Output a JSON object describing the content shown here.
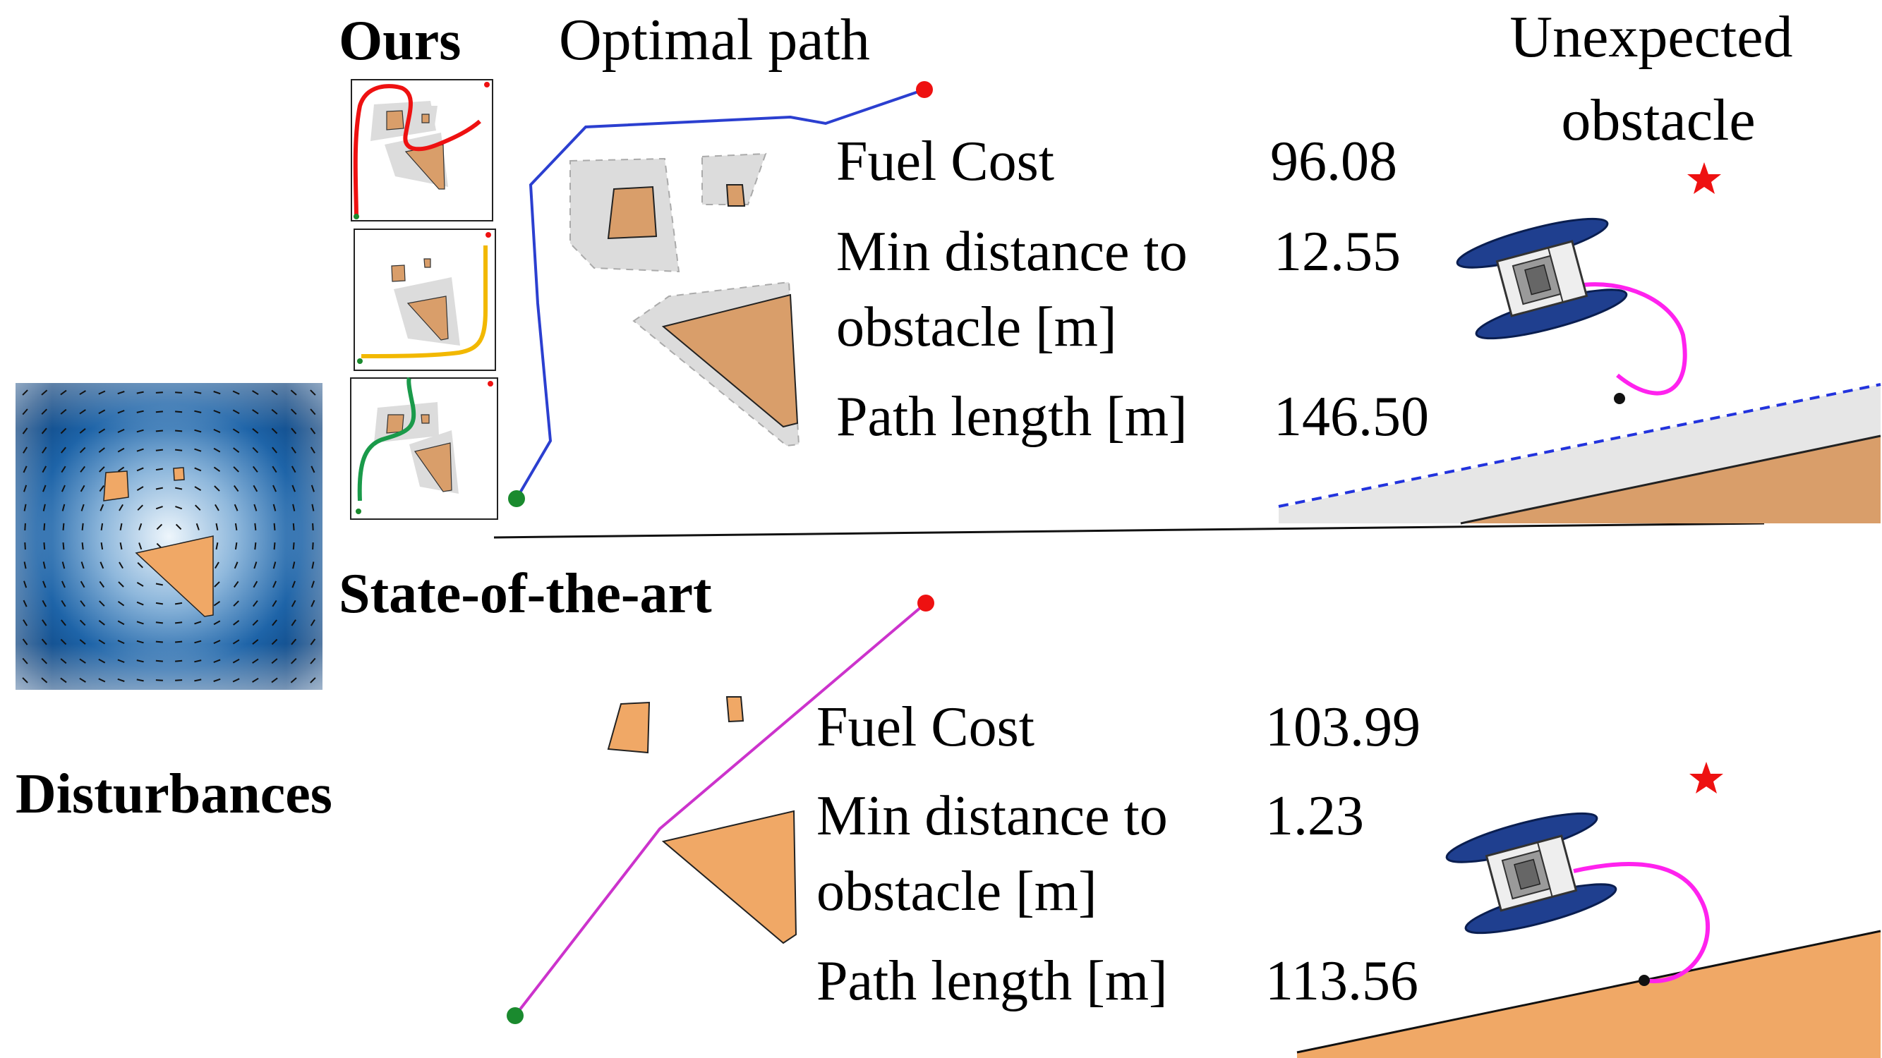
{
  "labels": {
    "ours": "Ours",
    "optimal_path": "Optimal path",
    "state_of_the_art": "State-of-the-art",
    "disturbances": "Disturbances",
    "unexpected_obstacle_line1": "Unexpected",
    "unexpected_obstacle_line2": "obstacle"
  },
  "ours_metrics": {
    "fuel_cost_label": "Fuel Cost",
    "fuel_cost_value": "96.08",
    "min_distance_label_line1": "Min distance to",
    "min_distance_label_line2": "obstacle [m]",
    "min_distance_value": "12.55",
    "path_length_label": "Path length [m]",
    "path_length_value": "146.50"
  },
  "sota_metrics": {
    "fuel_cost_label": "Fuel Cost",
    "fuel_cost_value": "103.99",
    "min_distance_label_line1": "Min distance to",
    "min_distance_label_line2": "obstacle [m]",
    "min_distance_value": "1.23",
    "path_length_label": "Path length [m]",
    "path_length_value": "113.56"
  },
  "colors": {
    "obstacle": "#f0a866",
    "obstacle_dark": "#d99e6a",
    "inflated_zone": "#dcdcdc",
    "ours_path": "#2b3fd0",
    "sota_path": "#cc33cc",
    "start": "#1a8a2e",
    "goal": "#ee1111",
    "robot_body": "#1f3f8f",
    "trajectory": "#ff22ee",
    "scenario_red": "#ee1111",
    "scenario_yellow": "#f2b800",
    "scenario_green": "#1a9a4a",
    "field_dark": "#0a3f7a",
    "field_light": "#e8f3fb"
  },
  "icons": [
    "star-icon",
    "robot-icon",
    "start-marker",
    "goal-marker"
  ]
}
